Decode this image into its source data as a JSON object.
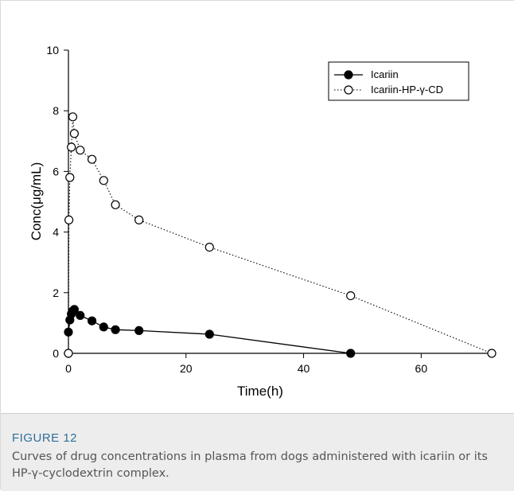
{
  "figure": {
    "label": "FIGURE 12",
    "caption": "Curves of drug concentrations in plasma from dogs administered with icariin or its HP-γ-cyclodextrin complex."
  },
  "chart_data": {
    "type": "line",
    "xlabel": "Time(h)",
    "ylabel": "Conc(μg/mL)",
    "xlim": [
      0,
      72
    ],
    "ylim": [
      0,
      10
    ],
    "x_ticks": [
      "0",
      "20",
      "40",
      "60"
    ],
    "y_ticks": [
      "0",
      "2",
      "4",
      "6",
      "8",
      "10"
    ],
    "legend_position": "top-right",
    "series": [
      {
        "name": "Icariin",
        "marker": "filled-circle",
        "line_style": "solid",
        "color": "#000000",
        "x": [
          0,
          0.25,
          0.5,
          0.75,
          1,
          2,
          4,
          6,
          8,
          12,
          24,
          48
        ],
        "y": [
          0.7,
          1.1,
          1.3,
          1.4,
          1.45,
          1.25,
          1.07,
          0.87,
          0.78,
          0.75,
          0.63,
          0.0
        ]
      },
      {
        "name": "Icariin-HP-γ-CD",
        "marker": "open-circle",
        "line_style": "dotted",
        "color": "#000000",
        "x": [
          0,
          0.08,
          0.25,
          0.5,
          0.75,
          1,
          2,
          4,
          6,
          8,
          12,
          24,
          48,
          72
        ],
        "y": [
          0.0,
          4.4,
          5.8,
          6.8,
          7.8,
          7.25,
          6.7,
          6.4,
          5.7,
          4.9,
          4.4,
          3.5,
          1.9,
          0.0
        ]
      }
    ]
  }
}
